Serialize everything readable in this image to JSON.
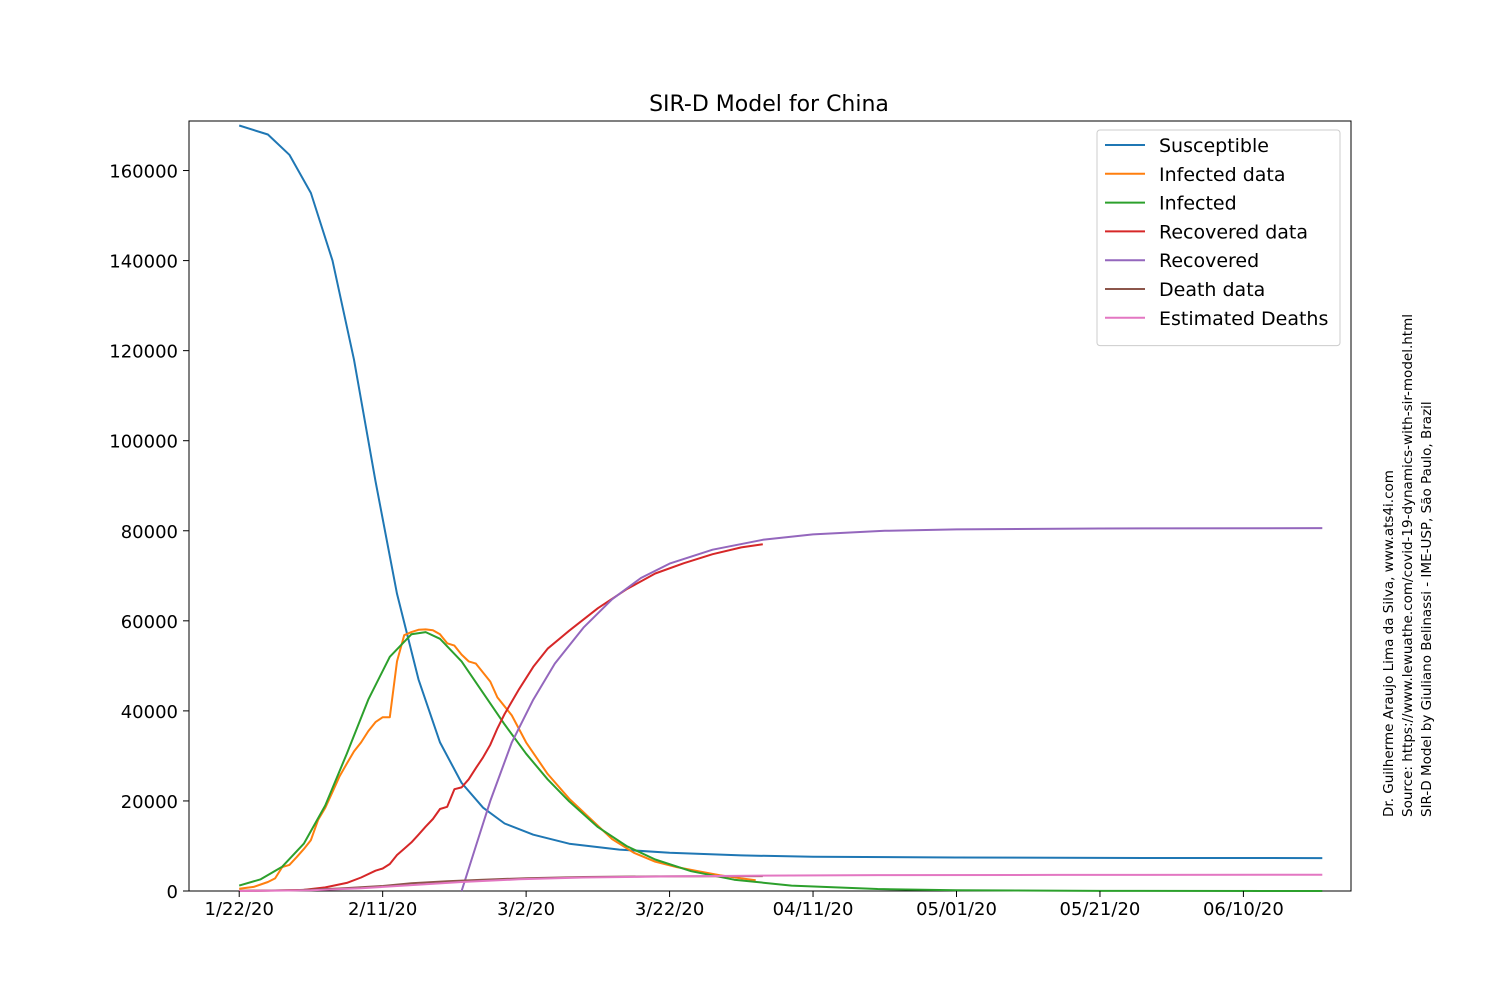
{
  "chart_data": {
    "type": "line",
    "title": "SIR-D Model for China",
    "xlabel": "",
    "ylabel": "",
    "x_start": "2020-01-22",
    "x_end": "2020-06-21",
    "xlim": [
      "2020-01-15",
      "2020-06-25"
    ],
    "ylim": [
      0,
      171000
    ],
    "x_ticks": [
      {
        "date": "2020-01-22",
        "label": "1/22/20"
      },
      {
        "date": "2020-02-11",
        "label": "2/11/20"
      },
      {
        "date": "2020-03-02",
        "label": "3/2/20"
      },
      {
        "date": "2020-03-22",
        "label": "3/22/20"
      },
      {
        "date": "2020-04-11",
        "label": "04/11/20"
      },
      {
        "date": "2020-05-01",
        "label": "05/01/20"
      },
      {
        "date": "2020-05-21",
        "label": "05/21/20"
      },
      {
        "date": "2020-06-10",
        "label": "06/10/20"
      }
    ],
    "y_ticks": [
      0,
      20000,
      40000,
      60000,
      80000,
      100000,
      120000,
      140000,
      160000
    ],
    "grid": false,
    "legend_position": "top-right",
    "series": [
      {
        "name": "Susceptible",
        "color": "#1f77b4",
        "points": [
          [
            "2020-01-22",
            170000
          ],
          [
            "2020-01-26",
            168000
          ],
          [
            "2020-01-29",
            163500
          ],
          [
            "2020-02-01",
            155000
          ],
          [
            "2020-02-04",
            140000
          ],
          [
            "2020-02-07",
            118000
          ],
          [
            "2020-02-10",
            91000
          ],
          [
            "2020-02-13",
            66000
          ],
          [
            "2020-02-16",
            47000
          ],
          [
            "2020-02-19",
            33000
          ],
          [
            "2020-02-22",
            24000
          ],
          [
            "2020-02-25",
            18500
          ],
          [
            "2020-02-28",
            15000
          ],
          [
            "2020-03-03",
            12500
          ],
          [
            "2020-03-08",
            10500
          ],
          [
            "2020-03-15",
            9200
          ],
          [
            "2020-03-22",
            8500
          ],
          [
            "2020-04-01",
            7900
          ],
          [
            "2020-04-11",
            7600
          ],
          [
            "2020-05-01",
            7450
          ],
          [
            "2020-05-21",
            7350
          ],
          [
            "2020-06-21",
            7300
          ]
        ]
      },
      {
        "name": "Infected data",
        "color": "#ff7f0e",
        "points": [
          [
            "2020-01-22",
            500
          ],
          [
            "2020-01-24",
            900
          ],
          [
            "2020-01-26",
            2000
          ],
          [
            "2020-01-27",
            2800
          ],
          [
            "2020-01-28",
            5300
          ],
          [
            "2020-01-29",
            5800
          ],
          [
            "2020-01-30",
            7500
          ],
          [
            "2020-01-31",
            9300
          ],
          [
            "2020-02-01",
            11300
          ],
          [
            "2020-02-02",
            15800
          ],
          [
            "2020-02-03",
            18500
          ],
          [
            "2020-02-04",
            22000
          ],
          [
            "2020-02-05",
            25500
          ],
          [
            "2020-02-06",
            28300
          ],
          [
            "2020-02-07",
            31000
          ],
          [
            "2020-02-08",
            33000
          ],
          [
            "2020-02-09",
            35500
          ],
          [
            "2020-02-10",
            37500
          ],
          [
            "2020-02-11",
            38600
          ],
          [
            "2020-02-12",
            38600
          ],
          [
            "2020-02-13",
            51000
          ],
          [
            "2020-02-14",
            56800
          ],
          [
            "2020-02-15",
            57500
          ],
          [
            "2020-02-16",
            58000
          ],
          [
            "2020-02-17",
            58100
          ],
          [
            "2020-02-18",
            57900
          ],
          [
            "2020-02-19",
            57000
          ],
          [
            "2020-02-20",
            55000
          ],
          [
            "2020-02-21",
            54500
          ],
          [
            "2020-02-22",
            52500
          ],
          [
            "2020-02-23",
            51000
          ],
          [
            "2020-02-24",
            50500
          ],
          [
            "2020-02-25",
            48500
          ],
          [
            "2020-02-26",
            46500
          ],
          [
            "2020-02-27",
            43000
          ],
          [
            "2020-02-29",
            39000
          ],
          [
            "2020-03-02",
            33000
          ],
          [
            "2020-03-05",
            26000
          ],
          [
            "2020-03-08",
            20500
          ],
          [
            "2020-03-11",
            16000
          ],
          [
            "2020-03-14",
            11500
          ],
          [
            "2020-03-17",
            8500
          ],
          [
            "2020-03-20",
            6500
          ],
          [
            "2020-03-23",
            5300
          ],
          [
            "2020-03-26",
            4400
          ],
          [
            "2020-03-29",
            3500
          ],
          [
            "2020-04-01",
            2800
          ],
          [
            "2020-04-03",
            2400
          ]
        ]
      },
      {
        "name": "Infected",
        "color": "#2ca02c",
        "points": [
          [
            "2020-01-22",
            1200
          ],
          [
            "2020-01-25",
            2600
          ],
          [
            "2020-01-28",
            5400
          ],
          [
            "2020-01-31",
            10500
          ],
          [
            "2020-02-03",
            19000
          ],
          [
            "2020-02-06",
            30500
          ],
          [
            "2020-02-09",
            42500
          ],
          [
            "2020-02-12",
            52000
          ],
          [
            "2020-02-15",
            57000
          ],
          [
            "2020-02-17",
            57500
          ],
          [
            "2020-02-19",
            56000
          ],
          [
            "2020-02-22",
            51000
          ],
          [
            "2020-02-25",
            44000
          ],
          [
            "2020-02-28",
            37000
          ],
          [
            "2020-03-02",
            30500
          ],
          [
            "2020-03-05",
            24800
          ],
          [
            "2020-03-08",
            19900
          ],
          [
            "2020-03-12",
            14200
          ],
          [
            "2020-03-16",
            10000
          ],
          [
            "2020-03-20",
            7000
          ],
          [
            "2020-03-25",
            4400
          ],
          [
            "2020-03-31",
            2500
          ],
          [
            "2020-04-08",
            1200
          ],
          [
            "2020-04-20",
            450
          ],
          [
            "2020-05-01",
            150
          ],
          [
            "2020-05-21",
            20
          ],
          [
            "2020-06-21",
            0
          ]
        ]
      },
      {
        "name": "Recovered data",
        "color": "#d62728",
        "points": [
          [
            "2020-01-22",
            30
          ],
          [
            "2020-01-27",
            100
          ],
          [
            "2020-01-31",
            250
          ],
          [
            "2020-02-03",
            800
          ],
          [
            "2020-02-06",
            1800
          ],
          [
            "2020-02-08",
            3000
          ],
          [
            "2020-02-10",
            4500
          ],
          [
            "2020-02-11",
            5000
          ],
          [
            "2020-02-12",
            6000
          ],
          [
            "2020-02-13",
            8000
          ],
          [
            "2020-02-14",
            9400
          ],
          [
            "2020-02-15",
            10800
          ],
          [
            "2020-02-16",
            12500
          ],
          [
            "2020-02-17",
            14300
          ],
          [
            "2020-02-18",
            16000
          ],
          [
            "2020-02-19",
            18200
          ],
          [
            "2020-02-20",
            18700
          ],
          [
            "2020-02-21",
            22600
          ],
          [
            "2020-02-22",
            23000
          ],
          [
            "2020-02-23",
            24800
          ],
          [
            "2020-02-24",
            27300
          ],
          [
            "2020-02-25",
            29700
          ],
          [
            "2020-02-26",
            32500
          ],
          [
            "2020-02-27",
            36100
          ],
          [
            "2020-02-28",
            39300
          ],
          [
            "2020-03-01",
            44800
          ],
          [
            "2020-03-03",
            49800
          ],
          [
            "2020-03-05",
            53800
          ],
          [
            "2020-03-08",
            57800
          ],
          [
            "2020-03-12",
            62800
          ],
          [
            "2020-03-16",
            67000
          ],
          [
            "2020-03-20",
            70500
          ],
          [
            "2020-03-24",
            72800
          ],
          [
            "2020-03-28",
            74800
          ],
          [
            "2020-04-01",
            76300
          ],
          [
            "2020-04-04",
            77000
          ]
        ]
      },
      {
        "name": "Recovered",
        "color": "#9467bd",
        "points": [
          [
            "2020-02-22",
            0
          ],
          [
            "2020-02-24",
            10000
          ],
          [
            "2020-02-26",
            20000
          ],
          [
            "2020-02-29",
            33000
          ],
          [
            "2020-03-03",
            42500
          ],
          [
            "2020-03-06",
            50500
          ],
          [
            "2020-03-10",
            58500
          ],
          [
            "2020-03-14",
            64800
          ],
          [
            "2020-03-18",
            69500
          ],
          [
            "2020-03-22",
            72700
          ],
          [
            "2020-03-28",
            75800
          ],
          [
            "2020-04-04",
            78000
          ],
          [
            "2020-04-11",
            79200
          ],
          [
            "2020-04-21",
            80000
          ],
          [
            "2020-05-01",
            80300
          ],
          [
            "2020-05-21",
            80500
          ],
          [
            "2020-06-21",
            80600
          ]
        ]
      },
      {
        "name": "Death data",
        "color": "#8c564b",
        "points": [
          [
            "2020-01-22",
            20
          ],
          [
            "2020-01-30",
            200
          ],
          [
            "2020-02-05",
            550
          ],
          [
            "2020-02-11",
            1100
          ],
          [
            "2020-02-15",
            1700
          ],
          [
            "2020-02-20",
            2150
          ],
          [
            "2020-02-25",
            2500
          ],
          [
            "2020-03-02",
            2850
          ],
          [
            "2020-03-10",
            3100
          ],
          [
            "2020-03-20",
            3250
          ],
          [
            "2020-04-04",
            3300
          ]
        ]
      },
      {
        "name": "Estimated Deaths",
        "color": "#e377c2",
        "points": [
          [
            "2020-01-22",
            0
          ],
          [
            "2020-02-01",
            150
          ],
          [
            "2020-02-08",
            600
          ],
          [
            "2020-02-15",
            1300
          ],
          [
            "2020-02-22",
            2000
          ],
          [
            "2020-03-01",
            2600
          ],
          [
            "2020-03-10",
            3000
          ],
          [
            "2020-03-22",
            3250
          ],
          [
            "2020-04-04",
            3420
          ],
          [
            "2020-04-20",
            3520
          ],
          [
            "2020-05-15",
            3580
          ],
          [
            "2020-06-21",
            3620
          ]
        ]
      }
    ]
  },
  "credits": [
    "Dr. Guilherme Araujo Lima da Silva, www.ats4i.com",
    "Source: https://www.lewuathe.com/covid-19-dynamics-with-sir-model.html",
    "SIR-D Model by Giuliano Belinassi - IME-USP, São Paulo, Brazil"
  ]
}
